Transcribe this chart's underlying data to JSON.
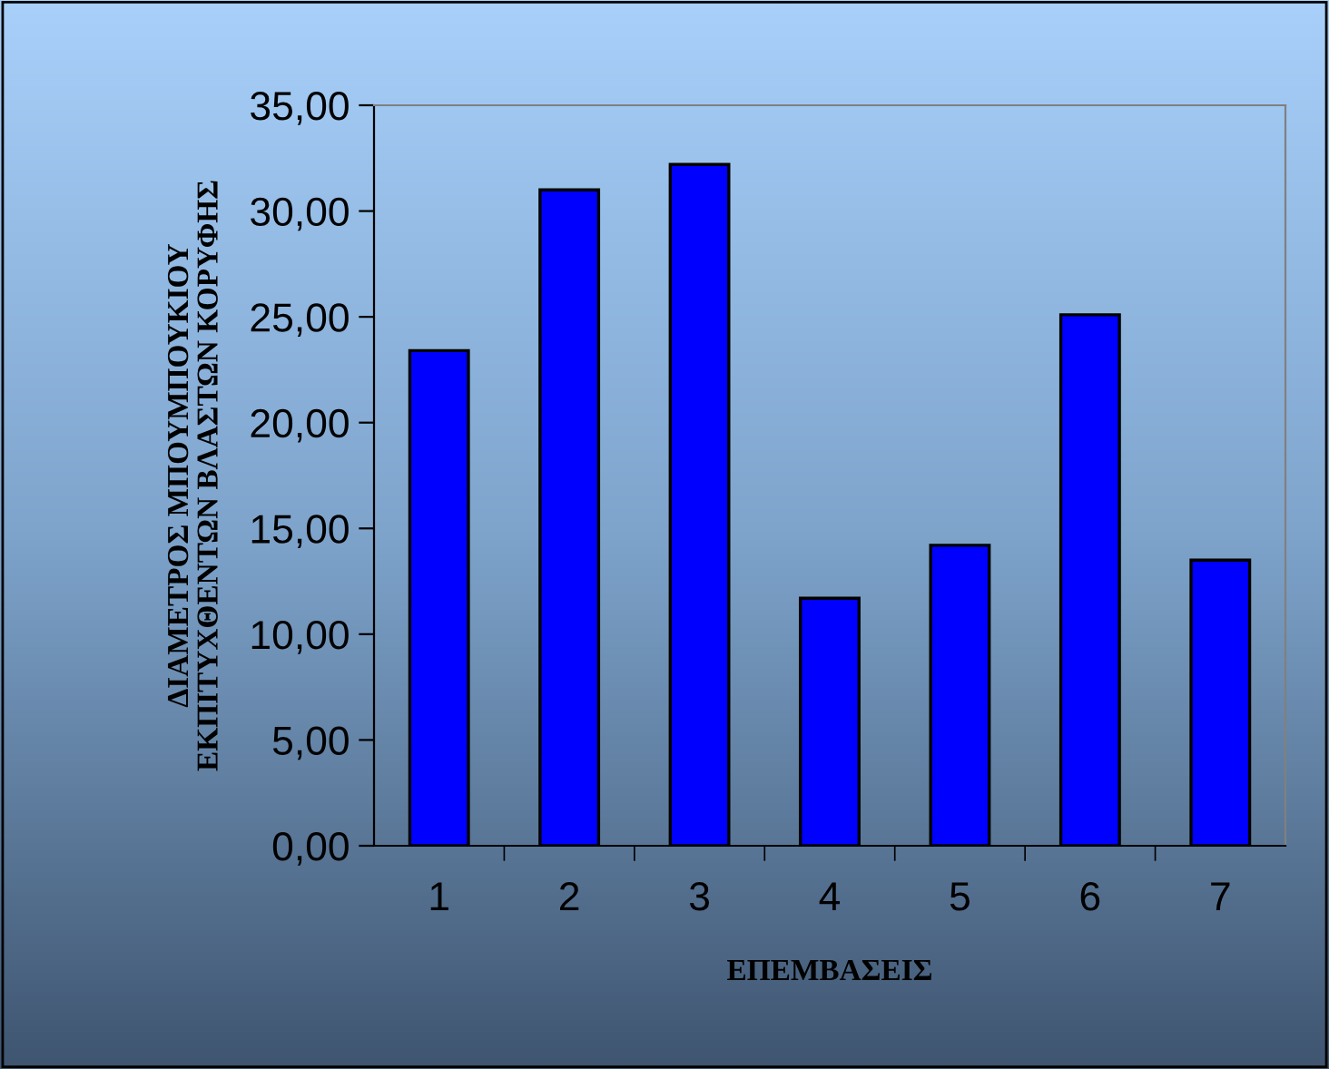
{
  "chart_data": {
    "type": "bar",
    "xlabel": "ΕΠΕΜΒΑΣΕΙΣ",
    "ylabel": "ΔΙΑΜΕΤΡΟΣ ΜΠΟΥΜΠΟΥΚΙΟΥ\nΕΚΠΙΤΥΧΘΕΝΤΩΝ ΒΛΑΣΤΩΝ ΚΟΡΥΦΗΣ",
    "categories": [
      "1",
      "2",
      "3",
      "4",
      "5",
      "6",
      "7"
    ],
    "values": [
      23.4,
      31.0,
      32.2,
      11.7,
      14.2,
      25.1,
      13.5
    ],
    "color": "#0000ff",
    "ylim": [
      0,
      35
    ],
    "yticks": [
      {
        "value": 0,
        "label": "0,00"
      },
      {
        "value": 5,
        "label": "5,00"
      },
      {
        "value": 10,
        "label": "10,00"
      },
      {
        "value": 15,
        "label": "15,00"
      },
      {
        "value": 20,
        "label": "20,00"
      },
      {
        "value": 25,
        "label": "25,00"
      },
      {
        "value": 30,
        "label": "30,00"
      },
      {
        "value": 35,
        "label": "35,00"
      }
    ],
    "grid": false,
    "legend": false
  }
}
